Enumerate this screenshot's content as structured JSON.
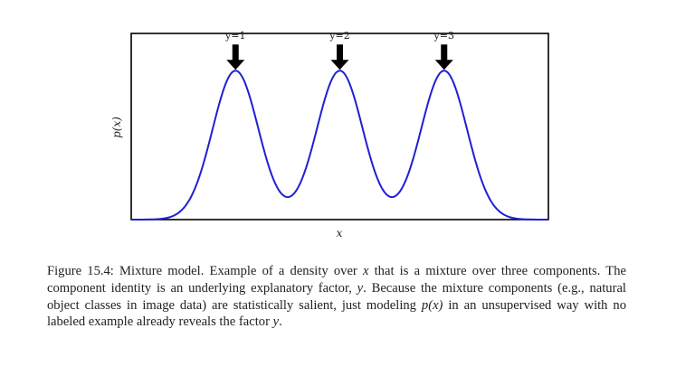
{
  "chart_data": {
    "type": "line",
    "xlabel": "x",
    "ylabel": "p(x)",
    "grid": false,
    "line_color": "#1f1fd6",
    "arrow_color": "#000000",
    "components": [
      {
        "label": "y=1",
        "mean": 1.0
      },
      {
        "label": "y=2",
        "mean": 2.0
      },
      {
        "label": "y=3",
        "mean": 3.0
      }
    ],
    "component_std": 0.22,
    "xlim": [
      0.0,
      4.0
    ],
    "ylim": [
      0.0,
      1.0
    ],
    "peak_height": 0.8
  },
  "caption": {
    "figure_label": "Figure 15.4:",
    "title": "Mixture model.",
    "text_1": "Example of a density over",
    "var_x": "x",
    "text_2": "that is a mixture over three components. The component identity is an underlying explanatory factor,",
    "var_y": "y",
    "text_3": ". Because the mixture components (e.g., natural object classes in image data) are statistically salient, just modeling",
    "px": "p(x)",
    "text_4": "in an unsupervised way with no labeled example already reveals the factor",
    "var_y2": "y",
    "text_5": "."
  }
}
